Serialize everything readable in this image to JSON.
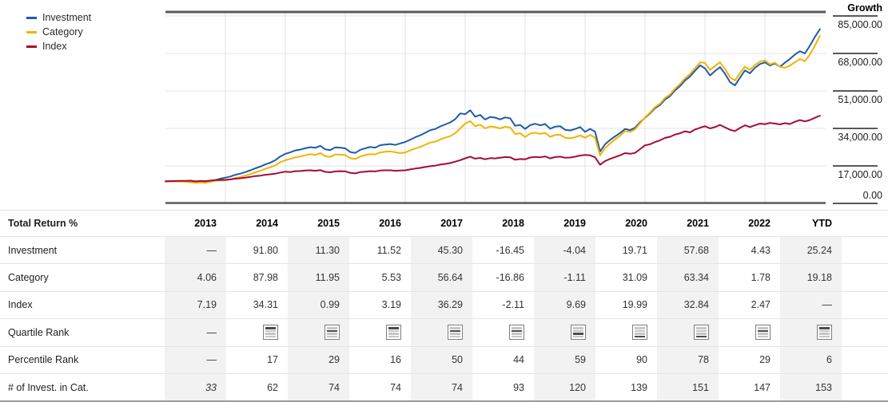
{
  "legend": {
    "items": [
      {
        "label": "Investment",
        "color": "#1f5aa8"
      },
      {
        "label": "Category",
        "color": "#f0b400"
      },
      {
        "label": "Index",
        "color": "#a50b37"
      }
    ]
  },
  "axis": {
    "title": "Growth",
    "tick_labels": [
      "85,000.00",
      "68,000.00",
      "51,000.00",
      "34,000.00",
      "17,000.00",
      "0.00"
    ],
    "tick_values": [
      85000,
      68000,
      51000,
      34000,
      17000,
      0
    ],
    "max": 85000
  },
  "chart_data": {
    "type": "line",
    "title": "Growth",
    "ylim": [
      0,
      85000
    ],
    "grid": true,
    "legend_position": "top-left",
    "x_start_year": 2013,
    "points_per_year": 12,
    "x_gridline_years": [
      2014,
      2015,
      2016,
      2017,
      2018,
      2019,
      2020,
      2021,
      2022,
      2023
    ],
    "series": [
      {
        "name": "Investment",
        "color": "#1f5aa8",
        "values": [
          10000,
          10050,
          9950,
          10050,
          9900,
          9750,
          9450,
          9600,
          9500,
          9900,
          10600,
          11200,
          11700,
          12200,
          13000,
          13500,
          14200,
          15000,
          15900,
          16700,
          17700,
          18500,
          19600,
          21300,
          22450,
          23200,
          24000,
          24400,
          25000,
          25500,
          25200,
          26100,
          24500,
          24200,
          25400,
          25300,
          24950,
          23300,
          22900,
          24300,
          25000,
          25600,
          25300,
          26400,
          26700,
          26900,
          26500,
          27200,
          27850,
          28900,
          30000,
          30900,
          32000,
          33200,
          33700,
          34900,
          35800,
          36700,
          38200,
          40800,
          40450,
          42200,
          39300,
          40100,
          38000,
          39200,
          38900,
          38100,
          39000,
          38600,
          35200,
          35600,
          33800,
          35500,
          36100,
          35400,
          36000,
          33900,
          34800,
          35000,
          33400,
          33100,
          33700,
          34600,
          32450,
          33800,
          32500,
          23500,
          26800,
          28800,
          30400,
          31900,
          33800,
          33200,
          34300,
          36800,
          38850,
          40800,
          43200,
          44600,
          47100,
          48700,
          51200,
          53200,
          55700,
          57600,
          60100,
          62600,
          61250,
          58000,
          60000,
          61800,
          58800,
          55000,
          53500,
          57000,
          60300,
          59000,
          61500,
          63200,
          63950,
          62500,
          63500,
          62000,
          63800,
          65500,
          67500,
          69000,
          68000,
          71500,
          75500,
          79000
        ]
      },
      {
        "name": "Category",
        "color": "#f0b400",
        "values": [
          10000,
          10000,
          9900,
          9950,
          9800,
          9600,
          9300,
          9450,
          9350,
          9750,
          10300,
          10400,
          10400,
          10900,
          11500,
          12000,
          12600,
          13300,
          14100,
          14800,
          15700,
          16400,
          17300,
          18700,
          19550,
          20200,
          20900,
          21300,
          21800,
          22300,
          22000,
          22800,
          21400,
          21100,
          22200,
          22100,
          21900,
          20500,
          20100,
          21300,
          21900,
          22400,
          22200,
          23100,
          23400,
          23600,
          23200,
          22800,
          23100,
          24000,
          24900,
          25600,
          26600,
          27600,
          28000,
          29000,
          29800,
          30500,
          31800,
          34000,
          36200,
          37300,
          35000,
          35700,
          34000,
          34900,
          34600,
          34000,
          34800,
          34400,
          31500,
          31800,
          30100,
          31600,
          32100,
          31500,
          32000,
          30200,
          31000,
          31100,
          29800,
          29500,
          30000,
          30800,
          29760,
          31000,
          29800,
          21800,
          25000,
          27200,
          29000,
          30700,
          32800,
          32400,
          33600,
          36300,
          39000,
          41200,
          43700,
          45200,
          47800,
          49400,
          52000,
          54100,
          56700,
          58700,
          61300,
          64000,
          63700,
          60500,
          62300,
          64000,
          61000,
          57200,
          55700,
          59000,
          62000,
          60500,
          62800,
          64300,
          64850,
          63000,
          63800,
          62000,
          61500,
          62500,
          64000,
          65500,
          64500,
          67500,
          71500,
          76000
        ]
      },
      {
        "name": "Index",
        "color": "#a50b37",
        "values": [
          10000,
          10100,
          10150,
          10250,
          10200,
          10300,
          10000,
          10150,
          10100,
          10350,
          10550,
          10650,
          10720,
          10900,
          11200,
          11400,
          11700,
          12000,
          12400,
          12600,
          13000,
          13200,
          13500,
          14000,
          14400,
          14200,
          14600,
          14700,
          14900,
          15000,
          14800,
          15100,
          14300,
          14100,
          14500,
          14600,
          14540,
          13800,
          13600,
          14200,
          14400,
          14600,
          14500,
          14900,
          15000,
          15000,
          14800,
          14900,
          15000,
          15400,
          15800,
          16100,
          16500,
          16900,
          17100,
          17600,
          17900,
          18300,
          18900,
          19600,
          20450,
          21200,
          20300,
          20600,
          20000,
          20500,
          20400,
          20700,
          21000,
          20900,
          19800,
          20100,
          20000,
          20800,
          21100,
          20900,
          21300,
          20400,
          21000,
          21200,
          20700,
          20800,
          21200,
          21700,
          21950,
          21800,
          20900,
          17500,
          19200,
          20200,
          21000,
          21800,
          22800,
          22500,
          22900,
          24600,
          26340,
          26800,
          27800,
          28600,
          29700,
          30200,
          31200,
          31800,
          32700,
          32200,
          33500,
          34300,
          35000,
          34000,
          34600,
          35600,
          34500,
          33400,
          32800,
          34200,
          35400,
          34600,
          35400,
          36200,
          35900,
          36500,
          36200,
          35800,
          36400,
          36000,
          37000,
          37800,
          37200,
          37800,
          38800,
          39800
        ]
      }
    ]
  },
  "table": {
    "header": {
      "label": "Total Return %",
      "columns": [
        "2013",
        "2014",
        "2015",
        "2016",
        "2017",
        "2018",
        "2019",
        "2020",
        "2021",
        "2022",
        "YTD"
      ]
    },
    "shaded_columns": [
      0,
      2,
      4,
      6,
      8,
      10
    ],
    "rows": [
      {
        "label": "Investment",
        "type": "values",
        "values": [
          "—",
          "91.80",
          "11.30",
          "11.52",
          "45.30",
          "-16.45",
          "-4.04",
          "19.71",
          "57.68",
          "4.43",
          "25.24"
        ]
      },
      {
        "label": "Category",
        "type": "values",
        "values": [
          "4.06",
          "87.98",
          "11.95",
          "5.53",
          "56.64",
          "-16.86",
          "-1.11",
          "31.09",
          "63.34",
          "1.78",
          "19.18"
        ]
      },
      {
        "label": "Index",
        "type": "values",
        "values": [
          "7.19",
          "34.31",
          "0.99",
          "3.19",
          "36.29",
          "-2.11",
          "9.69",
          "19.99",
          "32.84",
          "2.47",
          "—"
        ]
      },
      {
        "label": "Quartile Rank",
        "type": "quartile",
        "values": [
          "—",
          1,
          2,
          1,
          2,
          2,
          3,
          4,
          4,
          2,
          1
        ]
      },
      {
        "label": "Percentile Rank",
        "type": "values",
        "values": [
          "—",
          "17",
          "29",
          "16",
          "50",
          "44",
          "59",
          "90",
          "78",
          "29",
          "6"
        ]
      },
      {
        "label": "# of Invest. in Cat.",
        "type": "values",
        "italic_columns": [
          0
        ],
        "values": [
          "33",
          "62",
          "74",
          "74",
          "74",
          "93",
          "120",
          "139",
          "151",
          "147",
          "153"
        ]
      }
    ]
  }
}
